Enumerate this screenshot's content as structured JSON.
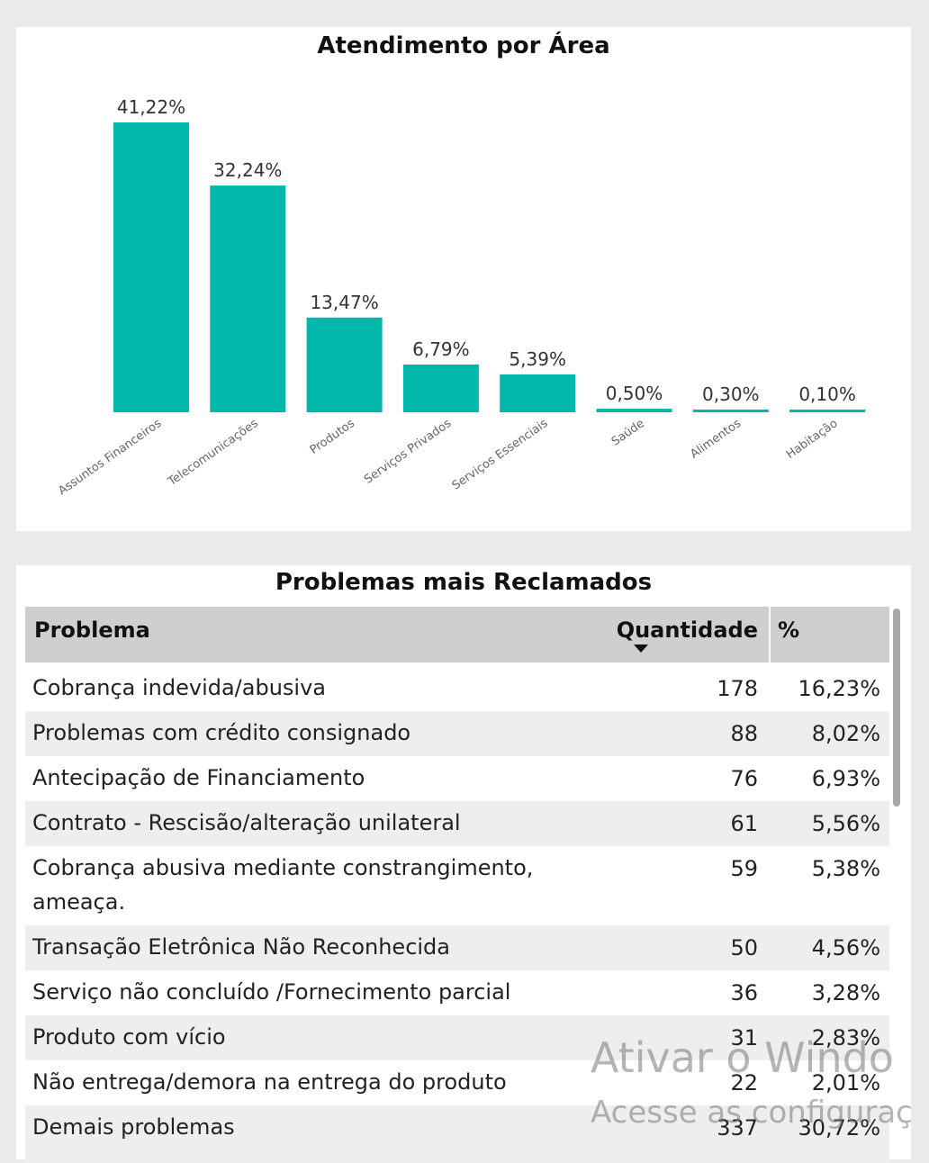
{
  "chart": {
    "title": "Atendimento por Área"
  },
  "chart_data": {
    "type": "bar",
    "title": "Atendimento por Área",
    "categories": [
      "Assuntos Financeiros",
      "Telecomunicações",
      "Produtos",
      "Serviços Privados",
      "Serviços Essenciais",
      "Saúde",
      "Alimentos",
      "Habitação"
    ],
    "values": [
      41.22,
      32.24,
      13.47,
      6.79,
      5.39,
      0.5,
      0.3,
      0.1
    ],
    "data_labels": [
      "41,22%",
      "32,24%",
      "13,47%",
      "6,79%",
      "5,39%",
      "0,50%",
      "0,30%",
      "0,10%"
    ],
    "xlabel": "",
    "ylabel": "",
    "ylim": [
      0,
      41.22
    ],
    "grid": false,
    "bar_color": "#01b8aa"
  },
  "table": {
    "title": "Problemas mais Reclamados",
    "columns": [
      "Problema",
      "Quantidade",
      "%"
    ],
    "rows": [
      {
        "problem": "Cobrança indevida/abusiva",
        "qty": "178",
        "pct": "16,23%"
      },
      {
        "problem": "Problemas com crédito consignado",
        "qty": "88",
        "pct": "8,02%"
      },
      {
        "problem": "Antecipação de Financiamento",
        "qty": "76",
        "pct": "6,93%"
      },
      {
        "problem": "Contrato - Rescisão/alteração unilateral",
        "qty": "61",
        "pct": "5,56%"
      },
      {
        "problem": "Cobrança abusiva mediante constrangimento, ameaça.",
        "qty": "59",
        "pct": "5,38%"
      },
      {
        "problem": "Transação Eletrônica Não Reconhecida",
        "qty": "50",
        "pct": "4,56%"
      },
      {
        "problem": "Serviço não concluído /Fornecimento parcial",
        "qty": "36",
        "pct": "3,28%"
      },
      {
        "problem": "Produto com vício",
        "qty": "31",
        "pct": "2,83%"
      },
      {
        "problem": "Não entrega/demora na entrega do produto",
        "qty": "22",
        "pct": "2,01%"
      },
      {
        "problem": "Demais problemas",
        "qty": "337",
        "pct": "30,72%"
      }
    ]
  },
  "watermark": {
    "line1": "Ativar o Windo",
    "line2": "Acesse as configuraç"
  }
}
